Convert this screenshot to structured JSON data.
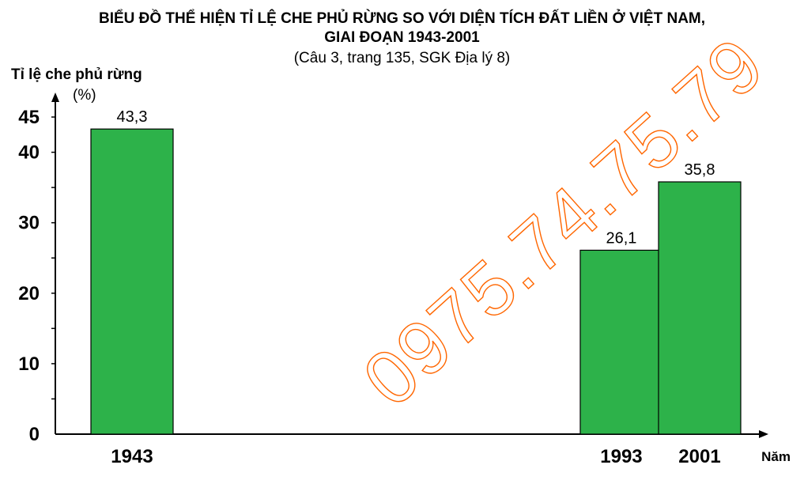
{
  "chart_data": {
    "type": "bar",
    "title": "BIỂU ĐỒ THỂ HIỆN TỈ LỆ CHE PHỦ RỪNG SO VỚI DIỆN TÍCH ĐẤT LIỀN Ở VIỆT NAM,",
    "title_line2": "GIAI ĐOẠN 1943-2001",
    "subtitle": "(Câu 3, trang 135, SGK Địa lý 8)",
    "ylabel": "Tỉ lệ che phủ rừng",
    "yunit": "(%)",
    "xlabel": "Năm",
    "categories": [
      "1943",
      "1993",
      "2001"
    ],
    "x": [
      1943,
      1993,
      2001
    ],
    "values": [
      43.3,
      26.1,
      35.8
    ],
    "value_labels": [
      "43,3",
      "26,1",
      "35,8"
    ],
    "yticks": [
      0,
      10,
      20,
      30,
      40,
      45
    ],
    "ylim": [
      0,
      45
    ],
    "xlim": [
      1938,
      2008
    ],
    "grid": false,
    "bar_color": "#2db24a",
    "watermark": "0975.74.75.79",
    "watermark_color": "#ff6600"
  }
}
